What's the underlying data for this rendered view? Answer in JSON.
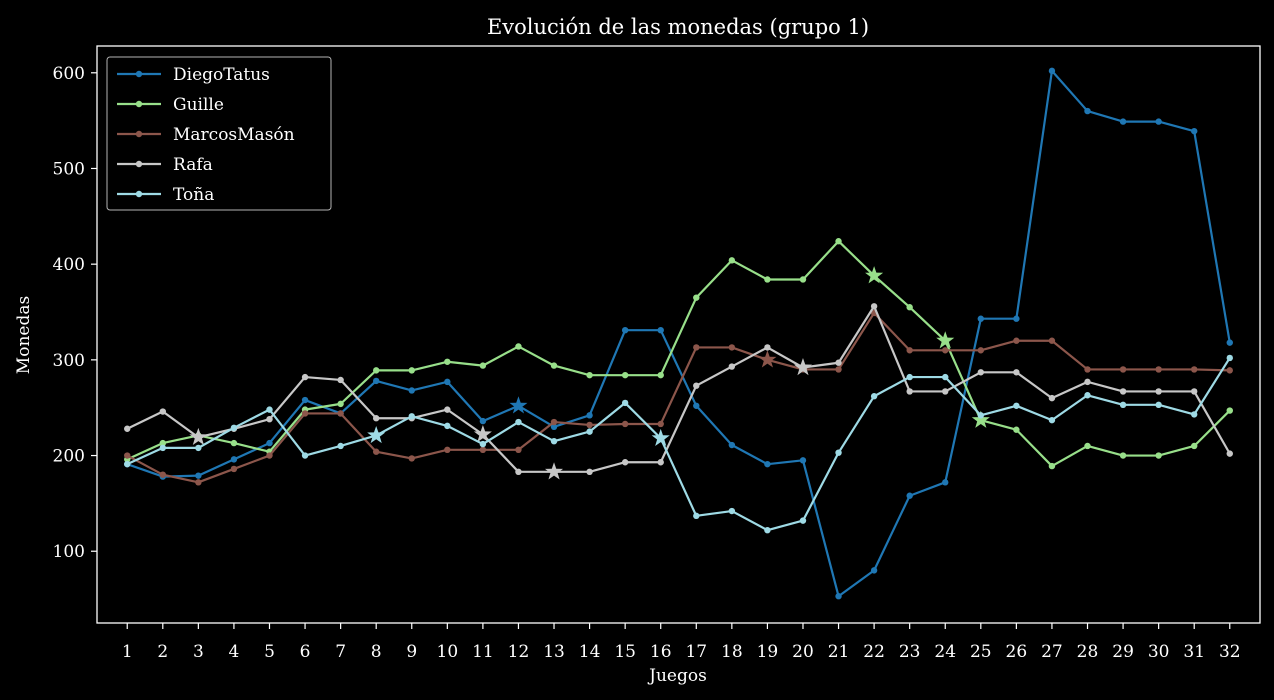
{
  "chart_data": {
    "type": "line",
    "title": "Evolución de las monedas (grupo 1)",
    "xlabel": "Juegos",
    "ylabel": "Monedas",
    "ylim": [
      25,
      628
    ],
    "xlim": [
      0.15,
      32.85
    ],
    "yticks": [
      100,
      200,
      300,
      400,
      500,
      600
    ],
    "grid": false,
    "legend_position": "top-left",
    "x": [
      1,
      2,
      3,
      4,
      5,
      6,
      7,
      8,
      9,
      10,
      11,
      12,
      13,
      14,
      15,
      16,
      17,
      18,
      19,
      20,
      21,
      22,
      23,
      24,
      25,
      26,
      27,
      28,
      29,
      30,
      31,
      32
    ],
    "series": [
      {
        "name": "DiegoTatus",
        "color": "#1f77b4",
        "values": [
          191,
          178,
          179,
          196,
          213,
          258,
          244,
          278,
          268,
          277,
          236,
          252,
          230,
          242,
          331,
          331,
          252,
          211,
          191,
          195,
          53,
          80,
          158,
          172,
          343,
          343,
          602,
          560,
          549,
          549,
          539,
          318
        ],
        "star_at": [
          12
        ]
      },
      {
        "name": "Guille",
        "color": "#98df8a",
        "values": [
          196,
          213,
          221,
          213,
          204,
          248,
          254,
          289,
          289,
          298,
          294,
          314,
          294,
          284,
          284,
          284,
          365,
          404,
          384,
          384,
          424,
          388,
          355,
          320,
          237,
          227,
          189,
          210,
          200,
          200,
          210,
          247
        ],
        "star_at": [
          22,
          24,
          25
        ]
      },
      {
        "name": "MarcosMasón",
        "color": "#8c564b",
        "values": [
          200,
          180,
          172,
          186,
          200,
          244,
          244,
          204,
          197,
          206,
          206,
          206,
          235,
          232,
          233,
          233,
          313,
          313,
          300,
          290,
          290,
          349,
          310,
          310,
          310,
          320,
          320,
          290,
          290,
          290,
          290,
          289
        ],
        "star_at": [
          19
        ]
      },
      {
        "name": "Rafa",
        "color": "#c7c7c7",
        "values": [
          228,
          246,
          219,
          228,
          238,
          282,
          279,
          239,
          239,
          248,
          222,
          183,
          183,
          183,
          193,
          193,
          273,
          293,
          313,
          292,
          297,
          356,
          267,
          267,
          287,
          287,
          260,
          277,
          267,
          267,
          267,
          202
        ],
        "star_at": [
          3,
          11,
          13,
          20
        ]
      },
      {
        "name": "Toña",
        "color": "#9edae5",
        "values": [
          191,
          208,
          208,
          229,
          248,
          200,
          210,
          221,
          241,
          231,
          212,
          235,
          215,
          225,
          255,
          218,
          137,
          142,
          122,
          132,
          203,
          262,
          282,
          282,
          242,
          252,
          237,
          263,
          253,
          253,
          243,
          302
        ],
        "star_at": [
          8,
          16
        ]
      }
    ]
  }
}
